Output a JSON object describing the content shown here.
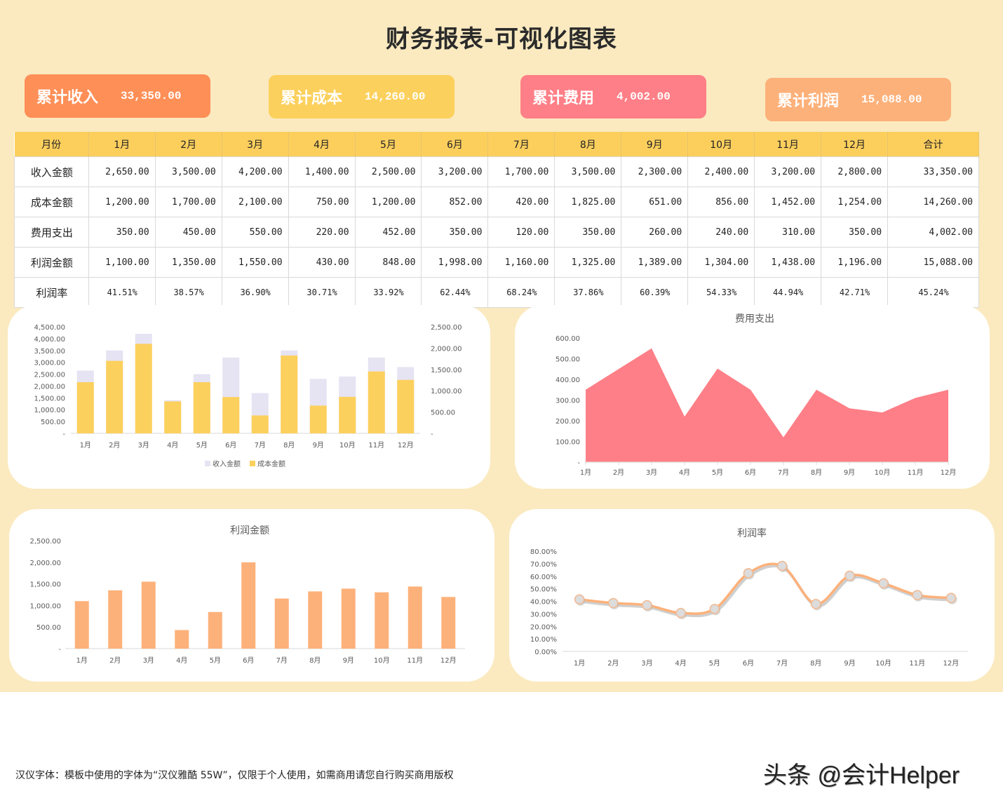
{
  "header": {
    "title": "财务报表-可视化图表"
  },
  "kpis": [
    {
      "label": "累计收入",
      "value": "33,350.00",
      "color": "#fe8f57"
    },
    {
      "label": "累计成本",
      "value": "14,260.00",
      "color": "#fcd05c"
    },
    {
      "label": "累计费用",
      "value": "4,002.00",
      "color": "#fe7f87"
    },
    {
      "label": "累计利润",
      "value": "15,088.00",
      "color": "#fdb17a"
    }
  ],
  "table": {
    "headers": [
      "月份",
      "1月",
      "2月",
      "3月",
      "4月",
      "5月",
      "6月",
      "7月",
      "8月",
      "9月",
      "10月",
      "11月",
      "12月",
      "合计"
    ],
    "rows": [
      {
        "label": "收入金额",
        "values": [
          "2,650.00",
          "3,500.00",
          "4,200.00",
          "1,400.00",
          "2,500.00",
          "3,200.00",
          "1,700.00",
          "3,500.00",
          "2,300.00",
          "2,400.00",
          "3,200.00",
          "2,800.00",
          "33,350.00"
        ]
      },
      {
        "label": "成本金额",
        "values": [
          "1,200.00",
          "1,700.00",
          "2,100.00",
          "750.00",
          "1,200.00",
          "852.00",
          "420.00",
          "1,825.00",
          "651.00",
          "856.00",
          "1,452.00",
          "1,254.00",
          "14,260.00"
        ]
      },
      {
        "label": "费用支出",
        "values": [
          "350.00",
          "450.00",
          "550.00",
          "220.00",
          "452.00",
          "350.00",
          "120.00",
          "350.00",
          "260.00",
          "240.00",
          "310.00",
          "350.00",
          "4,002.00"
        ]
      },
      {
        "label": "利润金额",
        "values": [
          "1,100.00",
          "1,350.00",
          "1,550.00",
          "430.00",
          "848.00",
          "1,998.00",
          "1,160.00",
          "1,325.00",
          "1,389.00",
          "1,304.00",
          "1,438.00",
          "1,196.00",
          "15,088.00"
        ]
      },
      {
        "label": "利润率",
        "values": [
          "41.51%",
          "38.57%",
          "36.90%",
          "30.71%",
          "33.92%",
          "62.44%",
          "68.24%",
          "37.86%",
          "60.39%",
          "54.33%",
          "44.94%",
          "42.71%",
          "45.24%"
        ]
      }
    ]
  },
  "chart_data": [
    {
      "type": "bar",
      "title": "",
      "categories": [
        "1月",
        "2月",
        "3月",
        "4月",
        "5月",
        "6月",
        "7月",
        "8月",
        "9月",
        "10月",
        "11月",
        "12月"
      ],
      "series": [
        {
          "name": "收入金额",
          "axis": "left",
          "color": "#e6e3f3",
          "values": [
            2650,
            3500,
            4200,
            1400,
            2500,
            3200,
            1700,
            3500,
            2300,
            2400,
            3200,
            2800
          ]
        },
        {
          "name": "成本金额",
          "axis": "right",
          "color": "#fcd05c",
          "values": [
            1200,
            1700,
            2100,
            750,
            1200,
            852,
            420,
            1825,
            651,
            856,
            1452,
            1254
          ]
        }
      ],
      "yticks_left": [
        "-",
        "500.00",
        "1,000.00",
        "1,500.00",
        "2,000.00",
        "2,500.00",
        "3,000.00",
        "3,500.00",
        "4,000.00",
        "4,500.00"
      ],
      "yticks_right": [
        "-",
        "500.00",
        "1,000.00",
        "1,500.00",
        "2,000.00",
        "2,500.00"
      ],
      "ylim_left": [
        0,
        4500
      ],
      "ylim_right": [
        0,
        2500
      ],
      "legend": [
        "收入金额",
        "成本金额"
      ],
      "legend_position": "bottom",
      "grid": false
    },
    {
      "type": "area",
      "title": "费用支出",
      "categories": [
        "1月",
        "2月",
        "3月",
        "4月",
        "5月",
        "6月",
        "7月",
        "8月",
        "9月",
        "10月",
        "11月",
        "12月"
      ],
      "values": [
        350,
        450,
        550,
        220,
        452,
        350,
        120,
        350,
        260,
        240,
        310,
        350
      ],
      "color": "#fe7f87",
      "yticks": [
        "-",
        "100.00",
        "200.00",
        "300.00",
        "400.00",
        "500.00",
        "600.00"
      ],
      "ylim": [
        0,
        600
      ],
      "grid": false
    },
    {
      "type": "bar",
      "title": "利润金额",
      "categories": [
        "1月",
        "2月",
        "3月",
        "4月",
        "5月",
        "6月",
        "7月",
        "8月",
        "9月",
        "10月",
        "11月",
        "12月"
      ],
      "values": [
        1100,
        1350,
        1550,
        430,
        848,
        1998,
        1160,
        1325,
        1389,
        1304,
        1438,
        1196
      ],
      "color": "#fdb17a",
      "yticks": [
        "-",
        "500.00",
        "1,000.00",
        "1,500.00",
        "2,000.00",
        "2,500.00"
      ],
      "ylim": [
        0,
        2500
      ],
      "grid": false
    },
    {
      "type": "line",
      "title": "利润率",
      "categories": [
        "1月",
        "2月",
        "3月",
        "4月",
        "5月",
        "6月",
        "7月",
        "8月",
        "9月",
        "10月",
        "11月",
        "12月"
      ],
      "values": [
        41.51,
        38.57,
        36.9,
        30.71,
        33.92,
        62.44,
        68.24,
        37.86,
        60.39,
        54.33,
        44.94,
        42.71
      ],
      "color": "#fdb17a",
      "marker_color": "#dcdcdc",
      "yticks": [
        "0.00%",
        "10.00%",
        "20.00%",
        "30.00%",
        "40.00%",
        "50.00%",
        "60.00%",
        "70.00%",
        "80.00%"
      ],
      "ylim": [
        0,
        80
      ],
      "smooth": true,
      "grid": false
    }
  ],
  "footer": {
    "note": "汉仪字体：模板中使用的字体为“汉仪雅酷  55W”，仅限于个人使用，如需商用请您自行购买商用版权",
    "watermark": "头条 @会计Helper"
  }
}
